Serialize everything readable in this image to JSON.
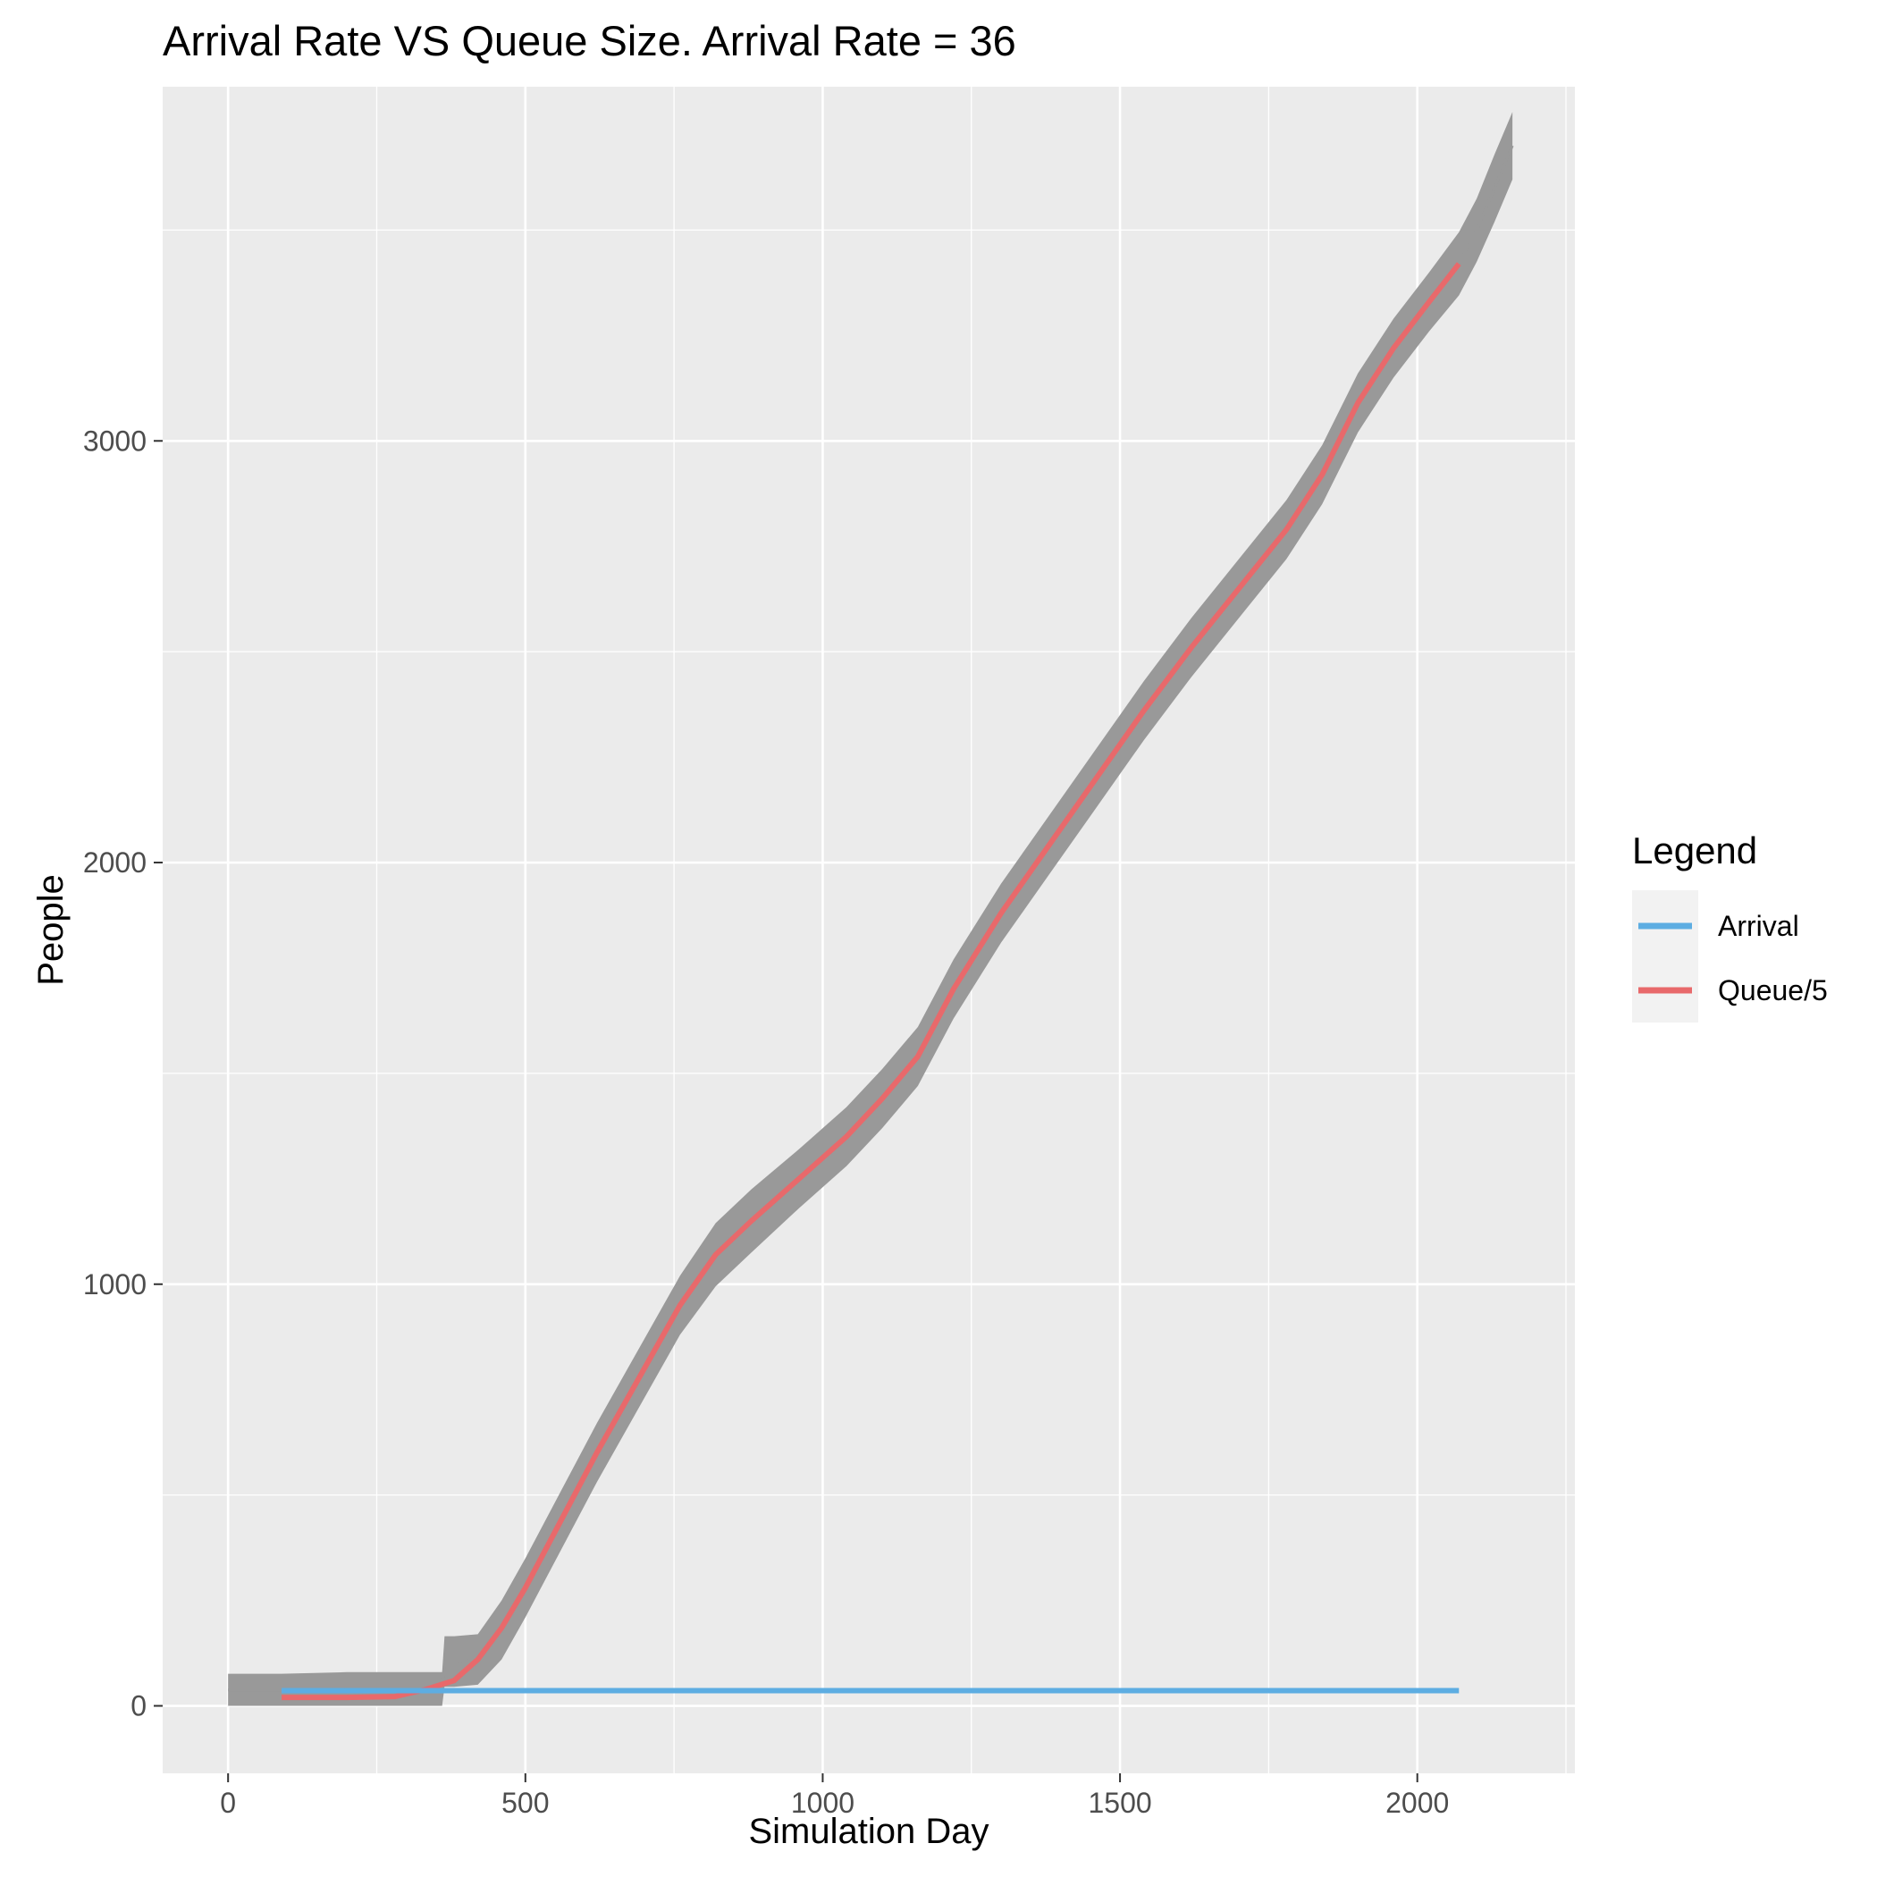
{
  "chart_data": {
    "type": "line",
    "title": "Arrival Rate VS Queue Size. Arrival Rate = 36",
    "xlabel": "Simulation Day",
    "ylabel": "People",
    "xlim": [
      -110,
      2265
    ],
    "ylim": [
      -160,
      3840
    ],
    "x_ticks": [
      0,
      500,
      1000,
      1500,
      2000
    ],
    "y_ticks": [
      0,
      1000,
      2000,
      3000
    ],
    "grid": true,
    "legend": {
      "title": "Legend",
      "placement": "right"
    },
    "series": [
      {
        "name": "Arrival",
        "color": "#5dade2",
        "x": [
          90,
          2070
        ],
        "y": [
          36,
          36
        ]
      },
      {
        "name": "Queue/5",
        "color": "#e8696b",
        "x": [
          90,
          200,
          280,
          330,
          380,
          420,
          460,
          500,
          560,
          620,
          700,
          760,
          820,
          880,
          960,
          1040,
          1100,
          1160,
          1220,
          1300,
          1380,
          1460,
          1540,
          1620,
          1700,
          1780,
          1840,
          1900,
          1960,
          2020,
          2070
        ],
        "y": [
          20,
          20,
          22,
          38,
          60,
          110,
          185,
          280,
          440,
          600,
          800,
          950,
          1070,
          1150,
          1250,
          1350,
          1440,
          1540,
          1700,
          1880,
          2040,
          2200,
          2360,
          2510,
          2650,
          2790,
          2920,
          3090,
          3220,
          3330,
          3420
        ]
      },
      {
        "name": "",
        "color": "#999999",
        "x": [
          0,
          90,
          200,
          280,
          330,
          360,
          364,
          380,
          420,
          460,
          500,
          560,
          620,
          700,
          760,
          820,
          880,
          960,
          1040,
          1100,
          1160,
          1220,
          1300,
          1380,
          1460,
          1540,
          1620,
          1700,
          1780,
          1840,
          1900,
          1960,
          2020,
          2070,
          2100,
          2130,
          2160
        ],
        "y": [
          38,
          38,
          40,
          40,
          40,
          40,
          105,
          105,
          110,
          180,
          280,
          440,
          600,
          800,
          950,
          1070,
          1150,
          1250,
          1350,
          1440,
          1540,
          1700,
          1880,
          2040,
          2200,
          2360,
          2510,
          2650,
          2790,
          2920,
          3090,
          3220,
          3330,
          3420,
          3500,
          3600,
          3700
        ],
        "band": [
          38,
          38,
          40,
          40,
          40,
          40,
          60,
          60,
          60,
          70,
          70,
          70,
          70,
          70,
          70,
          75,
          75,
          70,
          70,
          70,
          70,
          70,
          70,
          70,
          70,
          70,
          70,
          70,
          70,
          70,
          70,
          70,
          70,
          75,
          75,
          80,
          80
        ]
      }
    ]
  }
}
